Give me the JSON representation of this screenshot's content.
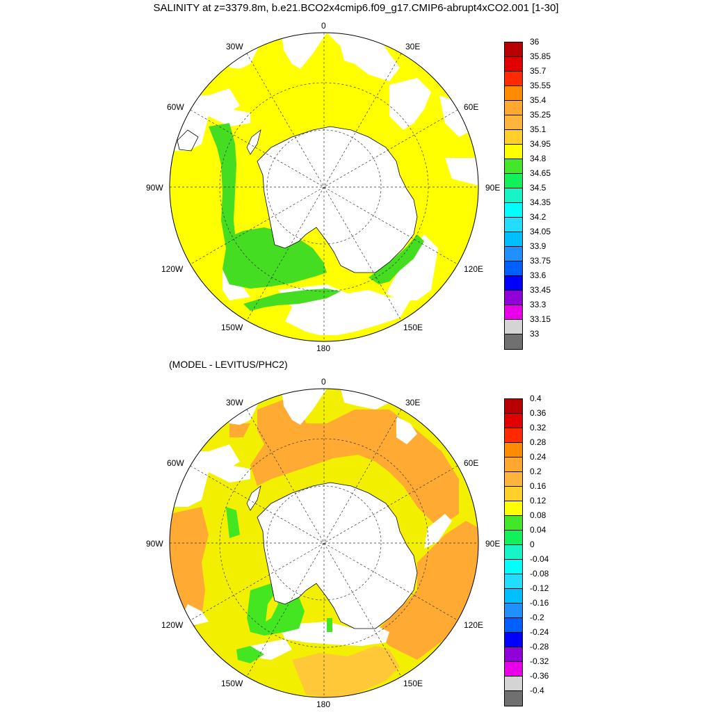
{
  "title": "SALINITY at z=3379.8m, b.e21.BCO2x4cmip6.f09_g17.CMIP6-abrupt4xCO2.001 [1-30]",
  "subtitle": "(MODEL - LEVITUS/PHC2)",
  "map_labels": {
    "top": "0",
    "bottom": "180",
    "left": "90W",
    "right": "90E",
    "ul1": "30W",
    "ul2": "60W",
    "ur1": "30E",
    "ur2": "60E",
    "ll1": "120W",
    "ll2": "150W",
    "lr1": "120E",
    "lr2": "150E"
  },
  "colorbars": {
    "salinity": {
      "labels": [
        "36",
        "35.85",
        "35.7",
        "35.55",
        "35.4",
        "35.25",
        "35.1",
        "34.95",
        "34.8",
        "34.65",
        "34.5",
        "34.35",
        "34.2",
        "34.05",
        "33.9",
        "33.75",
        "33.6",
        "33.45",
        "33.3",
        "33.15",
        "33"
      ],
      "colors": [
        "#b80000",
        "#e00000",
        "#ff2a00",
        "#ff8c00",
        "#ffa830",
        "#ffb43c",
        "#ffcf2a",
        "#ffff00",
        "#44e62a",
        "#12f05a",
        "#17f5c8",
        "#00ffff",
        "#22ddff",
        "#00bfff",
        "#2090ff",
        "#0060ff",
        "#0000ff",
        "#9000d8",
        "#e800e8",
        "#d4d4d4"
      ]
    },
    "anomaly": {
      "labels": [
        "0.4",
        "0.36",
        "0.32",
        "0.28",
        "0.24",
        "0.2",
        "0.16",
        "0.12",
        "0.08",
        "0.04",
        "0",
        "-0.04",
        "-0.08",
        "-0.12",
        "-0.16",
        "-0.2",
        "-0.24",
        "-0.28",
        "-0.32",
        "-0.36",
        "-0.4"
      ],
      "colors": [
        "#b80000",
        "#e00000",
        "#ff2a00",
        "#ff8c00",
        "#ffa830",
        "#ffb43c",
        "#ffcf2a",
        "#ffff00",
        "#44e62a",
        "#12f05a",
        "#17f5c8",
        "#00ffff",
        "#22ddff",
        "#00bfff",
        "#2090ff",
        "#0060ff",
        "#0000ff",
        "#9000d8",
        "#e800e8",
        "#d4d4d4"
      ]
    }
  },
  "colors": {
    "sal_yellow": "#ffff00",
    "sal_green": "#44dd22",
    "anom_orange": "#ffaa33",
    "anom_yellow": "#f2f000",
    "anom_green": "#44e622",
    "anom_lightorange": "#ffc838",
    "bottom_swatch": "#707070"
  }
}
